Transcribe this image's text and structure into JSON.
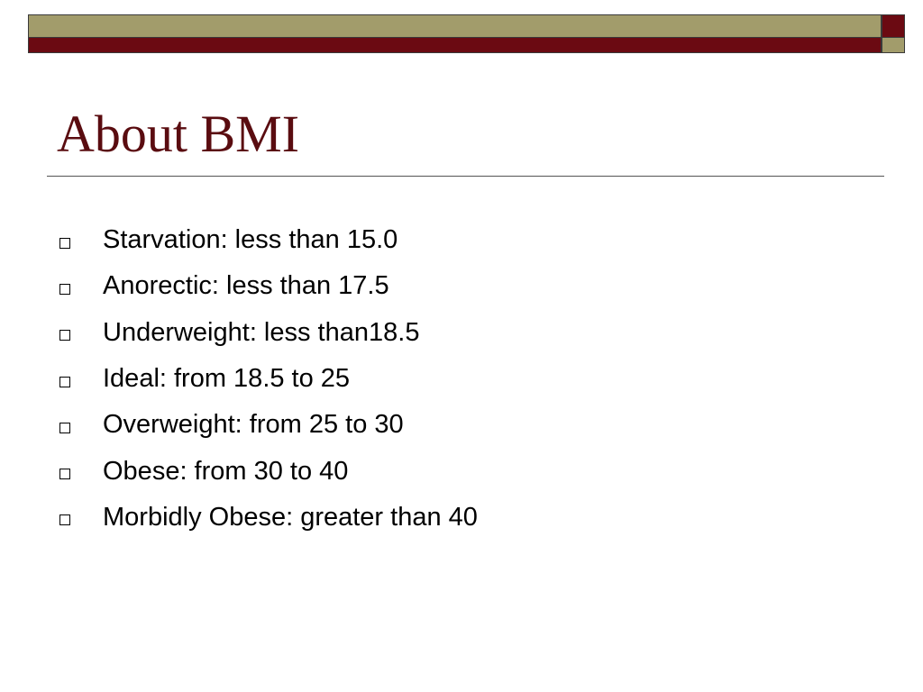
{
  "colors": {
    "olive": "#a29c6b",
    "maroon": "#6b0a12",
    "title": "#5a0c10",
    "text": "#000000"
  },
  "slide": {
    "title": "About BMI",
    "bullet_icon": "hollow-square-icon",
    "bullets": [
      "Starvation: less than 15.0",
      "Anorectic: less than 17.5",
      "Underweight: less than18.5",
      "Ideal: from 18.5 to 25",
      "Overweight: from 25 to 30",
      "Obese: from 30 to 40",
      "Morbidly Obese: greater than 40"
    ]
  }
}
